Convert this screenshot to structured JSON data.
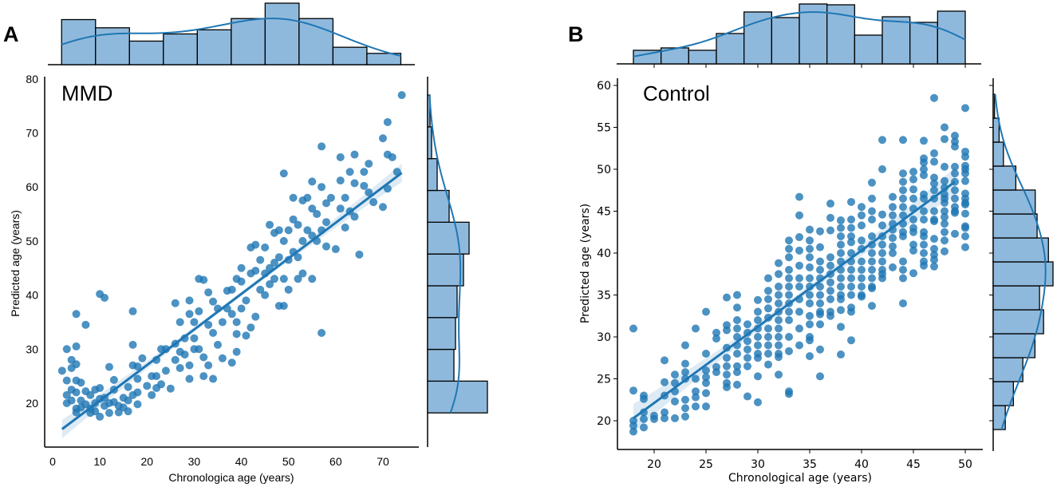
{
  "chart_data": [
    {
      "panel_label": "A",
      "type": "scatter",
      "title": "MMD",
      "xlabel": "Chronologica age (years)",
      "ylabel": "Predicted age (years)",
      "xlim": [
        -1.7,
        77.6
      ],
      "ylim": [
        11.9,
        80.5
      ],
      "xticks": [
        0,
        10,
        20,
        30,
        40,
        50,
        60,
        70
      ],
      "yticks": [
        20,
        30,
        40,
        50,
        60,
        70,
        80
      ],
      "point_color": "#1f77b4",
      "hist_fill": "#8fb9dc",
      "regression": {
        "x": [
          2,
          74
        ],
        "y": [
          15.2,
          62.6
        ]
      },
      "points": [
        [
          2,
          26
        ],
        [
          3,
          30
        ],
        [
          3,
          24.2
        ],
        [
          3,
          21.5
        ],
        [
          3,
          20
        ],
        [
          4,
          28
        ],
        [
          4,
          26.5
        ],
        [
          4,
          22.5
        ],
        [
          4,
          20.5
        ],
        [
          5,
          36.5
        ],
        [
          5,
          30.5
        ],
        [
          5,
          27.2
        ],
        [
          5,
          24.2
        ],
        [
          5,
          22
        ],
        [
          5,
          19
        ],
        [
          5,
          18.3
        ],
        [
          6,
          23.8
        ],
        [
          6,
          20.5
        ],
        [
          6,
          19.2
        ],
        [
          7,
          34.5
        ],
        [
          7,
          22.2
        ],
        [
          7,
          19.8
        ],
        [
          8,
          21.5
        ],
        [
          8,
          19
        ],
        [
          8,
          18.2
        ],
        [
          9,
          22.5
        ],
        [
          9,
          20
        ],
        [
          9,
          18.5
        ],
        [
          10,
          40.2
        ],
        [
          10,
          22.8
        ],
        [
          10,
          20.8
        ],
        [
          10,
          17.5
        ],
        [
          11,
          39.5
        ],
        [
          11,
          19.5
        ],
        [
          11,
          21
        ],
        [
          12,
          26.7
        ],
        [
          12,
          18.2
        ],
        [
          12,
          20
        ],
        [
          13,
          24.3
        ],
        [
          13,
          22.5
        ],
        [
          13,
          20.2
        ],
        [
          14,
          19.5
        ],
        [
          14,
          18.3
        ],
        [
          15,
          21
        ],
        [
          15,
          19.2
        ],
        [
          16,
          23
        ],
        [
          16,
          18.5
        ],
        [
          16,
          20.5
        ],
        [
          17,
          37
        ],
        [
          17,
          30.8
        ],
        [
          17,
          27
        ],
        [
          17,
          21.5
        ],
        [
          18,
          26.8
        ],
        [
          18,
          24.5
        ],
        [
          18,
          22
        ],
        [
          18,
          19.8
        ],
        [
          19,
          28.3
        ],
        [
          20,
          23.2
        ],
        [
          21,
          25
        ],
        [
          21,
          21.5
        ],
        [
          22,
          28
        ],
        [
          22,
          25
        ],
        [
          22,
          22.8
        ],
        [
          23,
          30
        ],
        [
          23,
          23.5
        ],
        [
          24,
          26
        ],
        [
          24,
          30
        ],
        [
          25,
          22.7
        ],
        [
          26,
          38.5
        ],
        [
          26,
          31
        ],
        [
          26,
          28
        ],
        [
          27,
          29.5
        ],
        [
          27,
          26.5
        ],
        [
          27,
          35
        ],
        [
          28,
          32
        ],
        [
          28,
          29
        ],
        [
          29,
          39
        ],
        [
          29,
          36.5
        ],
        [
          29,
          24.5
        ],
        [
          29,
          27
        ],
        [
          30,
          35
        ],
        [
          30,
          30
        ],
        [
          30,
          32
        ],
        [
          31,
          43
        ],
        [
          31,
          37
        ],
        [
          31,
          30
        ],
        [
          32,
          42.8
        ],
        [
          32,
          25
        ],
        [
          32,
          28.5
        ],
        [
          33,
          40.5
        ],
        [
          33,
          34.5
        ],
        [
          33,
          27
        ],
        [
          34,
          38.8
        ],
        [
          34,
          24.5
        ],
        [
          34,
          33
        ],
        [
          35,
          30.8
        ],
        [
          35,
          37.5
        ],
        [
          36,
          28.3
        ],
        [
          36,
          35
        ],
        [
          37,
          40.8
        ],
        [
          37,
          37.5
        ],
        [
          38,
          27.5
        ],
        [
          38,
          41
        ],
        [
          38,
          36.5
        ],
        [
          39,
          43
        ],
        [
          39,
          35
        ],
        [
          39,
          29.5
        ],
        [
          39,
          32.8
        ],
        [
          40,
          45
        ],
        [
          40,
          42.5
        ],
        [
          40,
          37.5
        ],
        [
          41,
          32.5
        ],
        [
          41,
          39
        ],
        [
          42,
          48.8
        ],
        [
          42,
          44
        ],
        [
          42,
          34
        ],
        [
          43,
          49.3
        ],
        [
          43,
          44.5
        ],
        [
          43,
          36
        ],
        [
          44,
          41
        ],
        [
          44,
          46.5
        ],
        [
          45,
          48.8
        ],
        [
          45,
          44
        ],
        [
          45,
          40
        ],
        [
          46,
          53
        ],
        [
          46,
          45
        ],
        [
          46,
          42
        ],
        [
          47,
          51.5
        ],
        [
          47,
          46
        ],
        [
          47,
          43
        ],
        [
          48,
          38
        ],
        [
          48,
          52
        ],
        [
          48,
          47
        ],
        [
          49,
          62.5
        ],
        [
          49,
          38
        ],
        [
          49,
          50
        ],
        [
          49,
          43
        ],
        [
          50,
          52
        ],
        [
          50,
          46.5
        ],
        [
          50,
          41
        ],
        [
          51,
          58
        ],
        [
          51,
          54
        ],
        [
          51,
          48
        ],
        [
          52,
          53
        ],
        [
          52,
          47
        ],
        [
          52,
          43
        ],
        [
          53,
          57.5
        ],
        [
          53,
          50
        ],
        [
          53,
          44
        ],
        [
          54,
          58
        ],
        [
          54,
          52
        ],
        [
          55,
          61
        ],
        [
          55,
          56
        ],
        [
          55,
          51
        ],
        [
          55,
          43
        ],
        [
          56,
          55
        ],
        [
          56,
          50
        ],
        [
          57,
          67.5
        ],
        [
          57,
          33
        ],
        [
          57,
          60
        ],
        [
          57,
          52
        ],
        [
          58,
          57
        ],
        [
          58,
          53.5
        ],
        [
          58,
          49
        ],
        [
          59,
          58
        ],
        [
          60,
          48.5
        ],
        [
          61,
          65.5
        ],
        [
          61,
          61.2
        ],
        [
          61,
          56
        ],
        [
          62,
          58
        ],
        [
          62,
          52.5
        ],
        [
          63,
          62.8
        ],
        [
          63,
          55.5
        ],
        [
          64,
          66
        ],
        [
          64,
          60.7
        ],
        [
          64,
          54.5
        ],
        [
          65,
          47.5
        ],
        [
          66,
          62.8
        ],
        [
          66,
          60.2
        ],
        [
          67,
          64.3
        ],
        [
          67,
          59
        ],
        [
          68,
          57.2
        ],
        [
          70,
          69
        ],
        [
          70,
          56.3
        ],
        [
          71,
          72
        ],
        [
          71,
          66
        ],
        [
          71,
          59.7
        ],
        [
          72,
          65.5
        ],
        [
          73,
          62.8
        ],
        [
          74,
          77
        ]
      ],
      "top_hist": {
        "range": [
          1.9,
          73.8
        ],
        "counts": [
          44,
          36,
          23,
          30,
          34,
          45,
          60,
          45,
          17,
          11
        ]
      },
      "right_hist": {
        "range": [
          18.2,
          77
        ],
        "counts": [
          75,
          33,
          35,
          37,
          45,
          52,
          27,
          12,
          5,
          3
        ]
      }
    },
    {
      "panel_label": "B",
      "type": "scatter",
      "title": "Control",
      "xlabel": "Chronological age (years)",
      "ylabel": "Predicted age (years)",
      "xlim": [
        16.5,
        50.9
      ],
      "ylim": [
        16.6,
        60.7
      ],
      "xticks": [
        20,
        25,
        30,
        35,
        40,
        45,
        50
      ],
      "yticks": [
        20,
        25,
        30,
        35,
        40,
        45,
        50,
        55,
        60
      ],
      "point_color": "#1f77b4",
      "hist_fill": "#8fb9dc",
      "regression": {
        "x": [
          18,
          49
        ],
        "y": [
          20.3,
          48.5
        ]
      },
      "point_groups": [
        {
          "x": 18,
          "y": [
            31,
            23.6,
            20,
            19.4,
            18.7
          ]
        },
        {
          "x": 19,
          "y": [
            23,
            22.6,
            21,
            20.2,
            19.2
          ]
        },
        {
          "x": 20,
          "y": [
            20.6,
            20.2
          ]
        },
        {
          "x": 21,
          "y": [
            27.2,
            24.6,
            23,
            21,
            20.3
          ]
        },
        {
          "x": 22,
          "y": [
            25.5,
            24.5,
            23.5,
            22.3,
            20.3
          ]
        },
        {
          "x": 23,
          "y": [
            29,
            26.8,
            25.8,
            25,
            22.5,
            21.5,
            20.5
          ]
        },
        {
          "x": 24,
          "y": [
            31,
            25,
            23.5,
            22.8,
            21.7
          ]
        },
        {
          "x": 25,
          "y": [
            33,
            28,
            26,
            25.2,
            24.5,
            23.3,
            21.7
          ]
        },
        {
          "x": 26,
          "y": [
            30.5,
            29.8,
            26.4,
            25.8
          ]
        },
        {
          "x": 27,
          "y": [
            34.7,
            31.4,
            30.8,
            28.7,
            27.5,
            26.5,
            25.5,
            24.5,
            24
          ]
        },
        {
          "x": 28,
          "y": [
            35,
            33.5,
            32,
            31,
            30,
            29,
            28,
            26.5,
            25.8,
            24.3
          ]
        },
        {
          "x": 29,
          "y": [
            31.5,
            30.5,
            29.5,
            28.5,
            27.5,
            26.5,
            22.9
          ]
        },
        {
          "x": 30,
          "y": [
            34.4,
            33,
            32,
            31,
            30,
            29,
            28,
            27.5,
            25.3,
            22.2
          ]
        },
        {
          "x": 31,
          "y": [
            37,
            35.5,
            34.5,
            33.4,
            32.3,
            31,
            30,
            29,
            28,
            26.7
          ]
        },
        {
          "x": 32,
          "y": [
            38.8,
            37.5,
            36,
            35,
            34,
            33,
            32,
            31,
            30,
            29,
            28,
            27.6,
            25.5
          ]
        },
        {
          "x": 33,
          "y": [
            41.5,
            40.5,
            39.5,
            38,
            37,
            36,
            35,
            34,
            33,
            32,
            30,
            28.3,
            23.5,
            23.2
          ]
        },
        {
          "x": 34,
          "y": [
            46.7,
            44.5,
            41.9,
            40.3,
            38.5,
            37,
            36,
            34.5,
            33,
            31,
            29
          ]
        },
        {
          "x": 35,
          "y": [
            42.8,
            41.5,
            40.5,
            39.5,
            38.3,
            37,
            36,
            35,
            34,
            32.5,
            31.5,
            30,
            29.6,
            27.7
          ]
        },
        {
          "x": 36,
          "y": [
            42.6,
            40.7,
            39,
            38,
            37,
            36,
            35,
            34,
            33,
            32.7,
            31.5,
            28.5,
            25.3
          ]
        },
        {
          "x": 37,
          "y": [
            45.9,
            44.2,
            42.7,
            39.5,
            38.5,
            37.5,
            36.5,
            35.5,
            34.5,
            33,
            32.5
          ]
        },
        {
          "x": 38,
          "y": [
            43.9,
            43,
            42,
            41,
            40,
            39,
            38,
            37,
            36,
            35,
            34.5,
            33.2,
            31.2,
            27.9
          ]
        },
        {
          "x": 39,
          "y": [
            46.1,
            44,
            43,
            42,
            41.3,
            40,
            39,
            38,
            37,
            36,
            35,
            33.5,
            33,
            29.6
          ]
        },
        {
          "x": 40,
          "y": [
            45.5,
            44.5,
            43.3,
            41.5,
            40.5,
            39,
            38,
            37,
            36,
            35,
            34.8
          ]
        },
        {
          "x": 41,
          "y": [
            48.4,
            46.5,
            45,
            44,
            42,
            41,
            40,
            39,
            38,
            37,
            36,
            35.8,
            33.7
          ]
        },
        {
          "x": 42,
          "y": [
            53.5,
            50,
            44.6,
            43.3,
            42,
            41,
            40,
            39,
            38,
            37.5,
            37
          ]
        },
        {
          "x": 43,
          "y": [
            46.7,
            45.5,
            44.5,
            43.5,
            42.8,
            41.8,
            40.8,
            40,
            38.3
          ]
        },
        {
          "x": 44,
          "y": [
            53.5,
            49.5,
            48.5,
            47.5,
            46.5,
            45.5,
            44.5,
            43.5,
            42.5,
            42,
            39,
            38,
            37,
            34
          ]
        },
        {
          "x": 45,
          "y": [
            49.7,
            48.8,
            47.6,
            46.5,
            45.3,
            44,
            43,
            42.5,
            41,
            40.3,
            37.6
          ]
        },
        {
          "x": 46,
          "y": [
            53.4,
            51.3,
            50.8,
            50,
            49.3,
            47,
            46.5,
            45,
            44,
            42.5,
            42,
            41,
            40,
            39,
            38.5
          ]
        },
        {
          "x": 47,
          "y": [
            58.5,
            51.9,
            50.9,
            49,
            48.3,
            47.5,
            46.5,
            45,
            44,
            43.8,
            41.7,
            40.5,
            39.8,
            39.2,
            38.4
          ]
        },
        {
          "x": 48,
          "y": [
            55,
            53.6,
            50.3,
            48.6,
            47.8,
            47,
            46.5,
            46,
            45,
            44.3,
            43.5,
            42.5,
            41.5,
            40.2
          ]
        },
        {
          "x": 49,
          "y": [
            54,
            53.3,
            52.7,
            50.3,
            49.5,
            48.5,
            47.5,
            46.5,
            45.5,
            45,
            44.8,
            42.3
          ]
        },
        {
          "x": 50,
          "y": [
            57.3,
            52.1,
            51.5,
            50.4,
            50,
            49.5,
            48.6,
            47.1,
            46.5,
            46,
            45.8,
            44.7,
            43.2,
            43,
            42,
            40.7
          ]
        }
      ],
      "top_hist": {
        "range": [
          18,
          50
        ],
        "counts": [
          17,
          20,
          17,
          38,
          65,
          58,
          75,
          74,
          36,
          59,
          52,
          66
        ]
      },
      "right_hist": {
        "range": [
          18.95,
          58.95
        ],
        "counts": [
          45,
          75,
          110,
          155,
          187,
          172,
          222,
          205,
          163,
          156,
          84,
          38,
          22,
          5
        ]
      }
    }
  ]
}
